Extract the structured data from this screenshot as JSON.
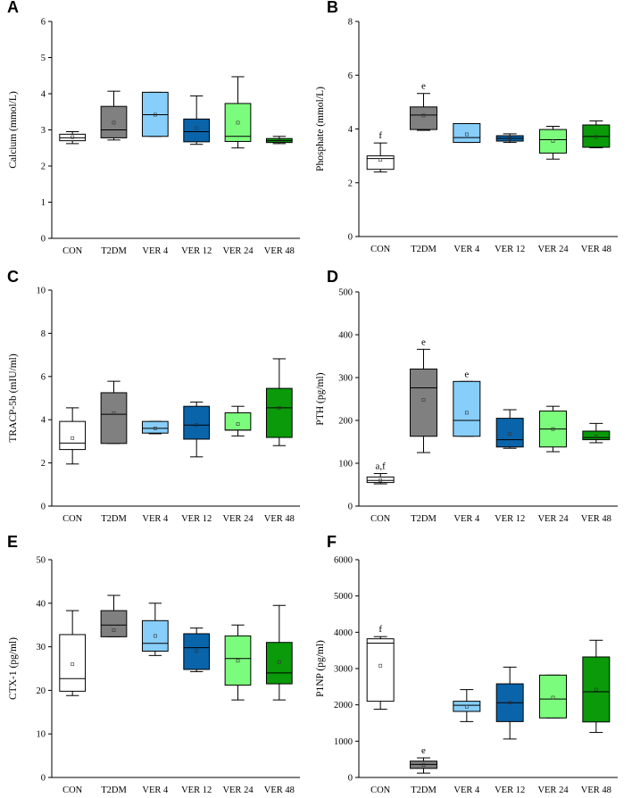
{
  "figure": {
    "title": ""
  },
  "colors": {
    "CON": "#ffffff",
    "T2DM": "#808080",
    "VER 4": "#87cefa",
    "VER 12": "#0a64aa",
    "VER 24": "#7cfc7c",
    "VER 48": "#0a9a0a"
  },
  "chart_data": [
    {
      "type": "box",
      "panel": "A",
      "title": "",
      "ylabel": "Calcium (mmol/L)",
      "xlabel": "",
      "ylim": [
        0,
        6
      ],
      "yticks": [
        0,
        1,
        2,
        3,
        4,
        5,
        6
      ],
      "categories": [
        "CON",
        "T2DM",
        "VER 4",
        "VER 12",
        "VER 24",
        "VER 48"
      ],
      "boxes": [
        {
          "category": "CON",
          "min": 2.62,
          "q1": 2.7,
          "median": 2.78,
          "q3": 2.88,
          "max": 2.95,
          "mean": 2.8,
          "sig": ""
        },
        {
          "category": "T2DM",
          "min": 2.72,
          "q1": 2.78,
          "median": 3.0,
          "q3": 3.65,
          "max": 4.07,
          "mean": 3.2,
          "sig": ""
        },
        {
          "category": "VER 4",
          "min": 2.82,
          "q1": 2.82,
          "median": 3.42,
          "q3": 4.04,
          "max": 4.04,
          "mean": 3.42,
          "sig": ""
        },
        {
          "category": "VER 12",
          "min": 2.6,
          "q1": 2.67,
          "median": 2.95,
          "q3": 3.3,
          "max": 3.94,
          "mean": 3.05,
          "sig": ""
        },
        {
          "category": "VER 24",
          "min": 2.5,
          "q1": 2.68,
          "median": 2.82,
          "q3": 3.73,
          "max": 4.47,
          "mean": 3.2,
          "sig": ""
        },
        {
          "category": "VER 48",
          "min": 2.62,
          "q1": 2.65,
          "median": 2.7,
          "q3": 2.76,
          "max": 2.82,
          "mean": 2.7,
          "sig": ""
        }
      ]
    },
    {
      "type": "box",
      "panel": "B",
      "title": "",
      "ylabel": "Phosphate (mmol/L)",
      "xlabel": "",
      "ylim": [
        0,
        8
      ],
      "yticks": [
        0,
        2,
        4,
        6,
        8
      ],
      "categories": [
        "CON",
        "T2DM",
        "VER 4",
        "VER 12",
        "VER 24",
        "VER 48"
      ],
      "boxes": [
        {
          "category": "CON",
          "min": 2.4,
          "q1": 2.5,
          "median": 2.9,
          "q3": 3.0,
          "max": 3.48,
          "mean": 2.85,
          "sig": "f"
        },
        {
          "category": "T2DM",
          "min": 3.95,
          "q1": 3.98,
          "median": 4.52,
          "q3": 4.82,
          "max": 5.32,
          "mean": 4.5,
          "sig": "e"
        },
        {
          "category": "VER 4",
          "min": 3.5,
          "q1": 3.5,
          "median": 3.68,
          "q3": 4.2,
          "max": 4.2,
          "mean": 3.8,
          "sig": ""
        },
        {
          "category": "VER 12",
          "min": 3.5,
          "q1": 3.55,
          "median": 3.65,
          "q3": 3.75,
          "max": 3.82,
          "mean": 3.65,
          "sig": ""
        },
        {
          "category": "VER 24",
          "min": 2.88,
          "q1": 3.1,
          "median": 3.6,
          "q3": 3.98,
          "max": 4.1,
          "mean": 3.55,
          "sig": ""
        },
        {
          "category": "VER 48",
          "min": 3.3,
          "q1": 3.32,
          "median": 3.72,
          "q3": 4.15,
          "max": 4.3,
          "mean": 3.7,
          "sig": ""
        }
      ]
    },
    {
      "type": "box",
      "panel": "C",
      "title": "",
      "ylabel": "TRACP-5b (mIU/ml)",
      "xlabel": "",
      "ylim": [
        0,
        10
      ],
      "yticks": [
        0,
        2,
        4,
        6,
        8,
        10
      ],
      "categories": [
        "CON",
        "T2DM",
        "VER 4",
        "VER 12",
        "VER 24",
        "VER 48"
      ],
      "boxes": [
        {
          "category": "CON",
          "min": 1.95,
          "q1": 2.62,
          "median": 2.92,
          "q3": 3.92,
          "max": 4.55,
          "mean": 3.15,
          "sig": ""
        },
        {
          "category": "T2DM",
          "min": 2.9,
          "q1": 2.9,
          "median": 4.25,
          "q3": 5.25,
          "max": 5.78,
          "mean": 4.3,
          "sig": ""
        },
        {
          "category": "VER 4",
          "min": 3.35,
          "q1": 3.38,
          "median": 3.6,
          "q3": 3.92,
          "max": 3.92,
          "mean": 3.6,
          "sig": ""
        },
        {
          "category": "VER 12",
          "min": 2.28,
          "q1": 3.1,
          "median": 3.75,
          "q3": 4.62,
          "max": 4.82,
          "mean": 3.75,
          "sig": ""
        },
        {
          "category": "VER 24",
          "min": 3.25,
          "q1": 3.52,
          "median": 3.52,
          "q3": 4.32,
          "max": 4.62,
          "mean": 3.8,
          "sig": ""
        },
        {
          "category": "VER 48",
          "min": 2.8,
          "q1": 3.18,
          "median": 4.55,
          "q3": 5.45,
          "max": 6.82,
          "mean": 4.55,
          "sig": ""
        }
      ]
    },
    {
      "type": "box",
      "panel": "D",
      "title": "",
      "ylabel": "PTH (pg/ml)",
      "xlabel": "",
      "ylim": [
        0,
        500
      ],
      "yticks": [
        0,
        100,
        200,
        300,
        400,
        500
      ],
      "categories": [
        "CON",
        "T2DM",
        "VER 4",
        "VER 12",
        "VER 24",
        "VER 48"
      ],
      "boxes": [
        {
          "category": "CON",
          "min": 52,
          "q1": 55,
          "median": 60,
          "q3": 68,
          "max": 76,
          "mean": 60,
          "sig": "a,f"
        },
        {
          "category": "T2DM",
          "min": 125,
          "q1": 163,
          "median": 276,
          "q3": 320,
          "max": 366,
          "mean": 248,
          "sig": "e"
        },
        {
          "category": "VER 4",
          "min": 163,
          "q1": 163,
          "median": 200,
          "q3": 291,
          "max": 291,
          "mean": 218,
          "sig": "e"
        },
        {
          "category": "VER 12",
          "min": 135,
          "q1": 138,
          "median": 155,
          "q3": 205,
          "max": 225,
          "mean": 168,
          "sig": ""
        },
        {
          "category": "VER 24",
          "min": 127,
          "q1": 138,
          "median": 180,
          "q3": 222,
          "max": 233,
          "mean": 180,
          "sig": ""
        },
        {
          "category": "VER 48",
          "min": 148,
          "q1": 155,
          "median": 160,
          "q3": 175,
          "max": 193,
          "mean": 162,
          "sig": ""
        }
      ]
    },
    {
      "type": "box",
      "panel": "E",
      "title": "",
      "ylabel": "CTX-1 (pg/ml)",
      "xlabel": "",
      "ylim": [
        0,
        50
      ],
      "yticks": [
        0,
        10,
        20,
        30,
        40,
        50
      ],
      "categories": [
        "CON",
        "T2DM",
        "VER 4",
        "VER 12",
        "VER 24",
        "VER 48"
      ],
      "boxes": [
        {
          "category": "CON",
          "min": 18.8,
          "q1": 19.8,
          "median": 22.7,
          "q3": 32.8,
          "max": 38.3,
          "mean": 26.0,
          "sig": ""
        },
        {
          "category": "T2DM",
          "min": 32.3,
          "q1": 32.3,
          "median": 35.0,
          "q3": 38.3,
          "max": 41.8,
          "mean": 33.8,
          "sig": ""
        },
        {
          "category": "VER 4",
          "min": 28.0,
          "q1": 29.0,
          "median": 30.8,
          "q3": 36.0,
          "max": 40.0,
          "mean": 32.5,
          "sig": ""
        },
        {
          "category": "VER 12",
          "min": 24.3,
          "q1": 24.8,
          "median": 29.8,
          "q3": 33.0,
          "max": 34.3,
          "mean": 29.0,
          "sig": ""
        },
        {
          "category": "VER 24",
          "min": 17.8,
          "q1": 21.2,
          "median": 27.3,
          "q3": 32.5,
          "max": 35.0,
          "mean": 26.8,
          "sig": ""
        },
        {
          "category": "VER 48",
          "min": 17.8,
          "q1": 21.5,
          "median": 24.0,
          "q3": 31.0,
          "max": 39.5,
          "mean": 26.5,
          "sig": ""
        }
      ]
    },
    {
      "type": "box",
      "panel": "F",
      "title": "",
      "ylabel": "P1NP (pg/ml)",
      "xlabel": "",
      "ylim": [
        0,
        6000
      ],
      "yticks": [
        0,
        1000,
        2000,
        3000,
        4000,
        5000,
        6000
      ],
      "categories": [
        "CON",
        "T2DM",
        "VER 4",
        "VER 12",
        "VER 24",
        "VER 48"
      ],
      "boxes": [
        {
          "category": "CON",
          "min": 1880,
          "q1": 2100,
          "median": 3700,
          "q3": 3820,
          "max": 3880,
          "mean": 3080,
          "sig": "f"
        },
        {
          "category": "T2DM",
          "min": 120,
          "q1": 250,
          "median": 360,
          "q3": 450,
          "max": 540,
          "mean": 340,
          "sig": "e"
        },
        {
          "category": "VER 4",
          "min": 1540,
          "q1": 1820,
          "median": 1990,
          "q3": 2100,
          "max": 2420,
          "mean": 1950,
          "sig": ""
        },
        {
          "category": "VER 12",
          "min": 1060,
          "q1": 1540,
          "median": 2060,
          "q3": 2580,
          "max": 3040,
          "mean": 2060,
          "sig": ""
        },
        {
          "category": "VER 24",
          "min": 1640,
          "q1": 1640,
          "median": 2160,
          "q3": 2820,
          "max": 2820,
          "mean": 2200,
          "sig": ""
        },
        {
          "category": "VER 48",
          "min": 1240,
          "q1": 1530,
          "median": 2360,
          "q3": 3320,
          "max": 3780,
          "mean": 2420,
          "sig": ""
        }
      ]
    }
  ]
}
